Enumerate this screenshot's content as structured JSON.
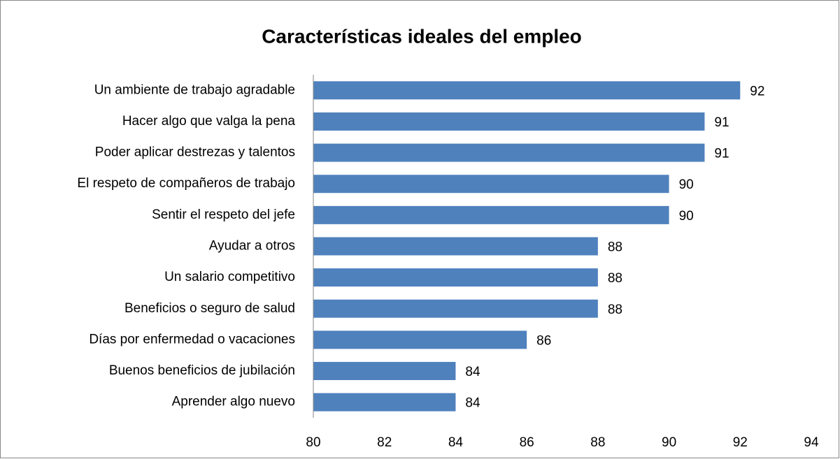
{
  "chart_data": {
    "type": "bar",
    "orientation": "horizontal",
    "title": "Características ideales del empleo",
    "categories": [
      "Un ambiente de trabajo agradable",
      "Hacer algo que valga la pena",
      "Poder aplicar destrezas y talentos",
      "El respeto de compañeros de trabajo",
      "Sentir el respeto del jefe",
      "Ayudar a otros",
      "Un salario competitivo",
      "Beneficios o seguro de salud",
      "Días por enfermedad o vacaciones",
      "Buenos beneficios de jubilación",
      "Aprender algo nuevo"
    ],
    "values": [
      92,
      91,
      91,
      90,
      90,
      88,
      88,
      88,
      86,
      84,
      84
    ],
    "color": "#4f81bd",
    "xlim": [
      80,
      94
    ],
    "xticks": [
      80,
      82,
      84,
      86,
      88,
      90,
      92,
      94
    ],
    "grid": false
  }
}
